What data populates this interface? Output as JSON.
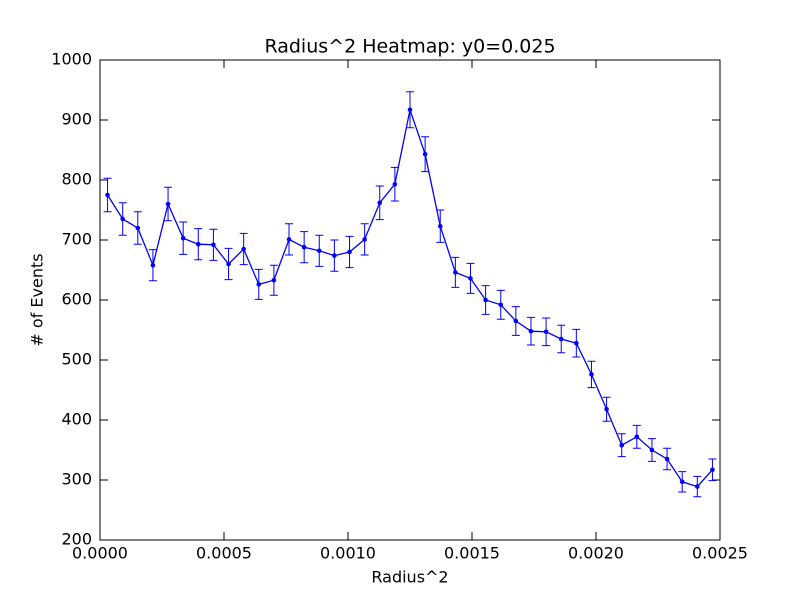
{
  "chart_data": {
    "type": "errorbar-line",
    "title": "Radius^2 Heatmap: y0=0.025",
    "xlabel": "Radius^2",
    "ylabel": "# of Events",
    "x": [
      3.05e-05,
      9.15e-05,
      0.0001524,
      0.0002134,
      0.0002744,
      0.0003354,
      0.0003963,
      0.0004573,
      0.0005183,
      0.0005793,
      0.0006402,
      0.0007012,
      0.0007622,
      0.0008232,
      0.0008841,
      0.0009451,
      0.0010061,
      0.0010671,
      0.001128,
      0.001189,
      0.00125,
      0.001311,
      0.001372,
      0.0014329,
      0.0014939,
      0.0015549,
      0.0016159,
      0.0016768,
      0.0017378,
      0.0017988,
      0.0018598,
      0.0019207,
      0.0019817,
      0.0020427,
      0.0021037,
      0.0021646,
      0.0022256,
      0.0022866,
      0.0023476,
      0.0024085,
      0.0024695
    ],
    "series": [
      {
        "color": "#0000ff",
        "values": [
          775,
          735,
          720,
          658,
          760,
          703,
          693,
          692,
          660,
          685,
          626,
          633,
          701,
          688,
          682,
          674,
          680,
          701,
          762,
          793,
          917,
          843,
          723,
          646,
          636,
          600,
          592,
          565,
          548,
          547,
          535,
          528,
          476,
          418,
          358,
          372,
          350,
          335,
          297,
          289,
          317
        ],
        "errors": [
          28,
          27,
          27,
          26,
          28,
          27,
          26,
          26,
          26,
          26,
          25,
          25,
          26,
          26,
          26,
          26,
          26,
          26,
          28,
          28,
          30,
          29,
          27,
          25,
          25,
          24,
          24,
          24,
          23,
          23,
          23,
          23,
          22,
          20,
          19,
          19,
          19,
          18,
          17,
          17,
          18
        ]
      }
    ],
    "xlim": [
      0,
      0.0025
    ],
    "ylim": [
      200,
      1000
    ],
    "xticks": [
      {
        "value": 0,
        "label": "0.0000"
      },
      {
        "value": 0.0005,
        "label": "0.0005"
      },
      {
        "value": 0.001,
        "label": "0.0010"
      },
      {
        "value": 0.0015,
        "label": "0.0015"
      },
      {
        "value": 0.002,
        "label": "0.0020"
      },
      {
        "value": 0.0025,
        "label": "0.0025"
      }
    ],
    "yticks": [
      200,
      300,
      400,
      500,
      600,
      700,
      800,
      900,
      1000
    ],
    "grid": false
  }
}
